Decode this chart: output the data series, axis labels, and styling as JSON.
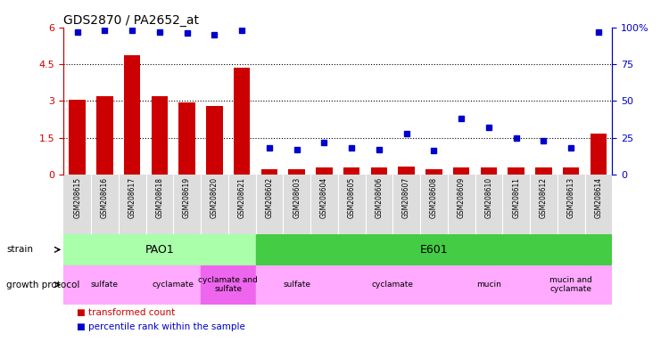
{
  "title": "GDS2870 / PA2652_at",
  "samples": [
    "GSM208615",
    "GSM208616",
    "GSM208617",
    "GSM208618",
    "GSM208619",
    "GSM208620",
    "GSM208621",
    "GSM208602",
    "GSM208603",
    "GSM208604",
    "GSM208605",
    "GSM208606",
    "GSM208607",
    "GSM208608",
    "GSM208609",
    "GSM208610",
    "GSM208611",
    "GSM208612",
    "GSM208613",
    "GSM208614"
  ],
  "transformed_count": [
    3.05,
    3.2,
    4.85,
    3.2,
    2.95,
    2.8,
    4.35,
    0.2,
    0.22,
    0.3,
    0.28,
    0.27,
    0.32,
    0.22,
    0.27,
    0.3,
    0.28,
    0.27,
    0.27,
    1.65
  ],
  "percentile_rank": [
    97,
    98,
    98,
    97,
    96,
    95,
    98,
    18,
    17,
    22,
    18,
    17,
    28,
    16,
    38,
    32,
    25,
    23,
    18,
    97
  ],
  "ylim_left": [
    0,
    6
  ],
  "ylim_right": [
    0,
    100
  ],
  "yticks_left": [
    0,
    1.5,
    3.0,
    4.5,
    6.0
  ],
  "yticks_left_labels": [
    "0",
    "1.5",
    "3",
    "4.5",
    "6"
  ],
  "yticks_right": [
    0,
    25,
    50,
    75,
    100
  ],
  "yticks_right_labels": [
    "0",
    "25",
    "50",
    "75",
    "100%"
  ],
  "bar_color": "#cc0000",
  "dot_color": "#0000cc",
  "strain_segments": [
    {
      "label": "PAO1",
      "start": 0,
      "end": 7,
      "color": "#aaffaa"
    },
    {
      "label": "E601",
      "start": 7,
      "end": 20,
      "color": "#44cc44"
    }
  ],
  "growth_segments": [
    {
      "label": "sulfate",
      "start": 0,
      "end": 3,
      "color": "#ffaaff"
    },
    {
      "label": "cyclamate",
      "start": 3,
      "end": 5,
      "color": "#ffaaff"
    },
    {
      "label": "cyclamate and\nsulfate",
      "start": 5,
      "end": 7,
      "color": "#ee66ee"
    },
    {
      "label": "sulfate",
      "start": 7,
      "end": 10,
      "color": "#ffaaff"
    },
    {
      "label": "cyclamate",
      "start": 10,
      "end": 14,
      "color": "#ffaaff"
    },
    {
      "label": "mucin",
      "start": 14,
      "end": 17,
      "color": "#ffaaff"
    },
    {
      "label": "mucin and\ncyclamate",
      "start": 17,
      "end": 20,
      "color": "#ffaaff"
    }
  ],
  "legend_items": [
    {
      "label": "transformed count",
      "color": "#cc0000"
    },
    {
      "label": "percentile rank within the sample",
      "color": "#0000cc"
    }
  ],
  "background_color": "#ffffff",
  "tick_label_color_left": "#cc0000",
  "tick_label_color_right": "#0000cc",
  "xticklabel_bg": "#dddddd"
}
